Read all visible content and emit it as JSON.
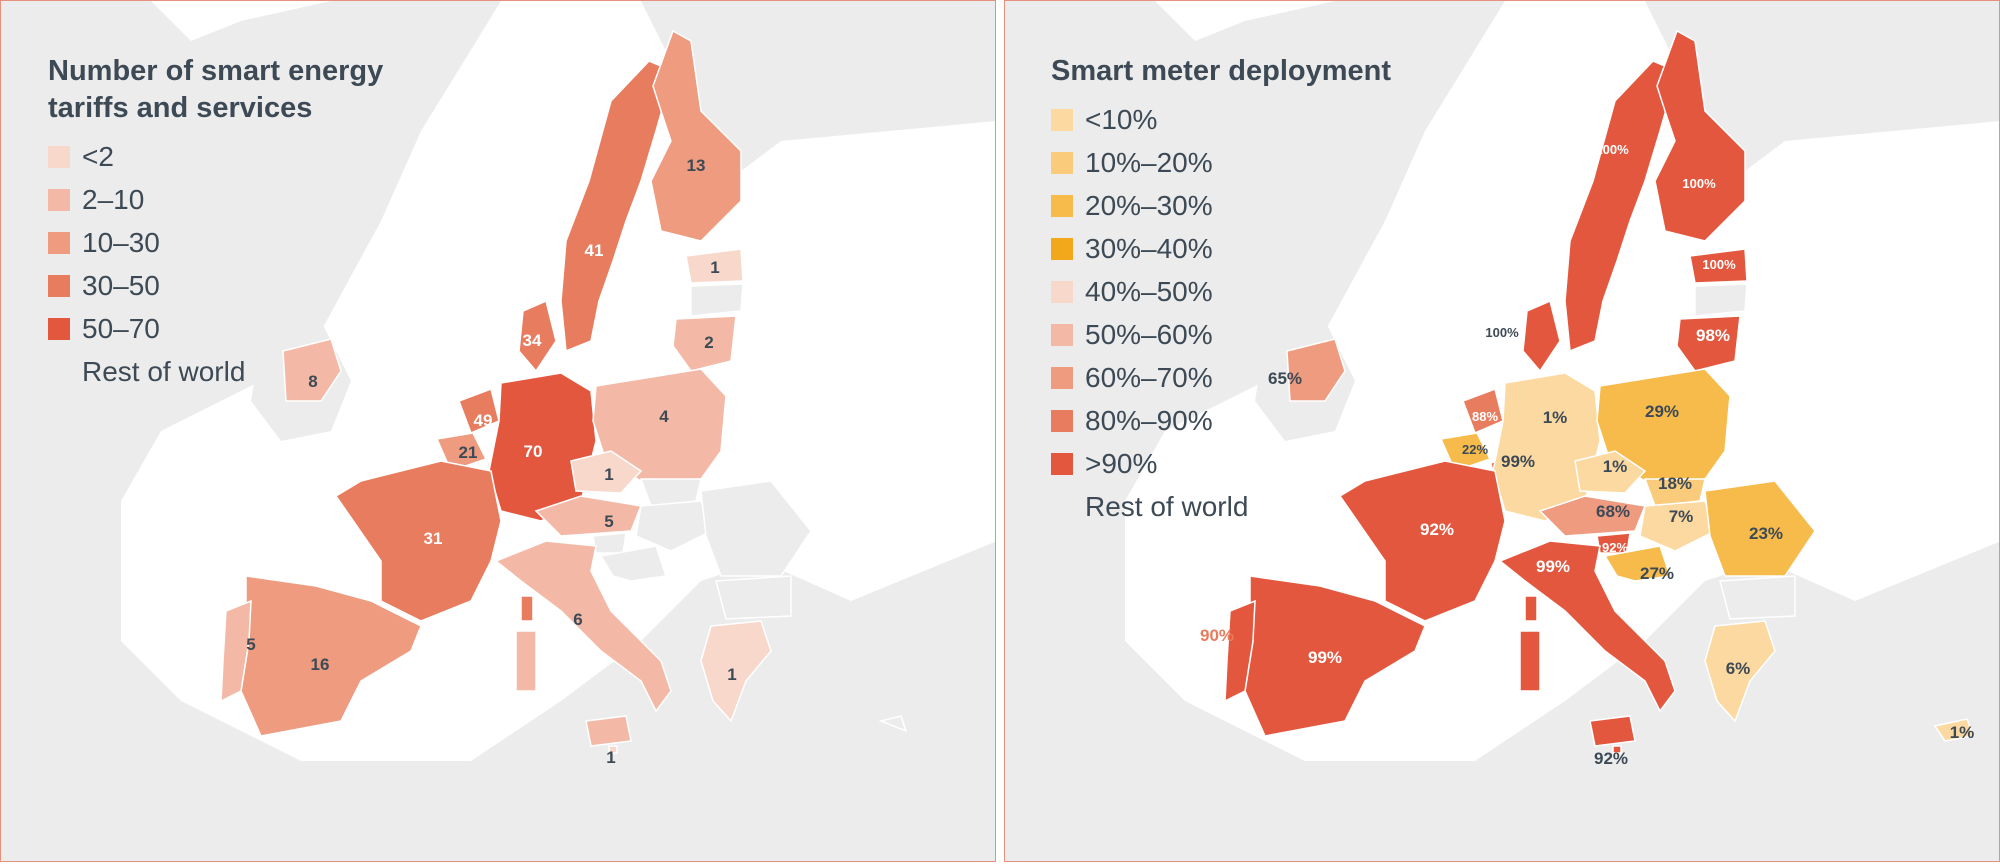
{
  "colors": {
    "rest_of_world": "#ececec",
    "tariffs": {
      "lt2": "#f9d8cc",
      "2-10": "#f3b9a6",
      "10-30": "#ee9b80",
      "30-50": "#e87c5e",
      "50-70": "#e3573f"
    },
    "deployment": {
      "lt10": "#fbd9a0",
      "10-20": "#f9cb7b",
      "20-30": "#f6bb4b",
      "30-40": "#f2a81a",
      "40-50": "#f9d8cc",
      "50-60": "#f3b9a6",
      "60-70": "#ee9b80",
      "80-90": "#e87c5e",
      "gt90": "#e3573f"
    }
  },
  "left_panel": {
    "title": "Number of smart energy\ntariffs and services",
    "legend": [
      {
        "label": "<2",
        "color": "#f9d8cc"
      },
      {
        "label": "2–10",
        "color": "#f3b9a6"
      },
      {
        "label": "10–30",
        "color": "#ee9b80"
      },
      {
        "label": "30–50",
        "color": "#e87c5e"
      },
      {
        "label": "50–70",
        "color": "#e3573f"
      },
      {
        "label": "Rest of world",
        "color": "#ececec"
      }
    ]
  },
  "right_panel": {
    "title": "Smart meter deployment",
    "legend": [
      {
        "label": "<10%",
        "color": "#fbd9a0"
      },
      {
        "label": "10%–20%",
        "color": "#f9cb7b"
      },
      {
        "label": "20%–30%",
        "color": "#f6bb4b"
      },
      {
        "label": "30%–40%",
        "color": "#f2a81a"
      },
      {
        "label": "40%–50%",
        "color": "#f9d8cc"
      },
      {
        "label": "50%–60%",
        "color": "#f3b9a6"
      },
      {
        "label": "60%–70%",
        "color": "#ee9b80"
      },
      {
        "label": "80%–90%",
        "color": "#e87c5e"
      },
      {
        "label": ">90%",
        "color": "#e3573f"
      },
      {
        "label": "Rest of world",
        "color": "#ececec"
      }
    ]
  },
  "map_data": {
    "countries": [
      {
        "id": "sweden",
        "tariffs": "41",
        "deployment": "100%"
      },
      {
        "id": "finland",
        "tariffs": "13",
        "deployment": "100%"
      },
      {
        "id": "estonia",
        "tariffs": "1",
        "deployment": "100%"
      },
      {
        "id": "latvia",
        "tariffs": "",
        "deployment": ""
      },
      {
        "id": "lithuania",
        "tariffs": "2",
        "deployment": "98%"
      },
      {
        "id": "denmark",
        "tariffs": "34",
        "deployment": "100%"
      },
      {
        "id": "ireland",
        "tariffs": "8",
        "deployment": "65%"
      },
      {
        "id": "netherlands",
        "tariffs": "49",
        "deployment": "88%"
      },
      {
        "id": "belgium",
        "tariffs": "21",
        "deployment": "22%"
      },
      {
        "id": "luxembourg",
        "tariffs": "",
        "deployment": "99%"
      },
      {
        "id": "germany",
        "tariffs": "70",
        "deployment": "1%"
      },
      {
        "id": "poland",
        "tariffs": "4",
        "deployment": "29%"
      },
      {
        "id": "czechia",
        "tariffs": "1",
        "deployment": "1%"
      },
      {
        "id": "slovakia",
        "tariffs": "",
        "deployment": "18%"
      },
      {
        "id": "austria",
        "tariffs": "5",
        "deployment": "68%"
      },
      {
        "id": "hungary",
        "tariffs": "",
        "deployment": "7%"
      },
      {
        "id": "slovenia",
        "tariffs": "",
        "deployment": "92%"
      },
      {
        "id": "croatia",
        "tariffs": "",
        "deployment": "27%"
      },
      {
        "id": "romania",
        "tariffs": "",
        "deployment": "23%"
      },
      {
        "id": "bulgaria",
        "tariffs": "",
        "deployment": ""
      },
      {
        "id": "france",
        "tariffs": "31",
        "deployment": "92%"
      },
      {
        "id": "italy",
        "tariffs": "6",
        "deployment": "99%"
      },
      {
        "id": "spain",
        "tariffs": "16",
        "deployment": "99%"
      },
      {
        "id": "portugal",
        "tariffs": "5",
        "deployment": "90%"
      },
      {
        "id": "greece",
        "tariffs": "1",
        "deployment": "6%"
      },
      {
        "id": "malta",
        "tariffs": "1",
        "deployment": "92%"
      },
      {
        "id": "cyprus",
        "tariffs": "",
        "deployment": "1%"
      }
    ]
  }
}
